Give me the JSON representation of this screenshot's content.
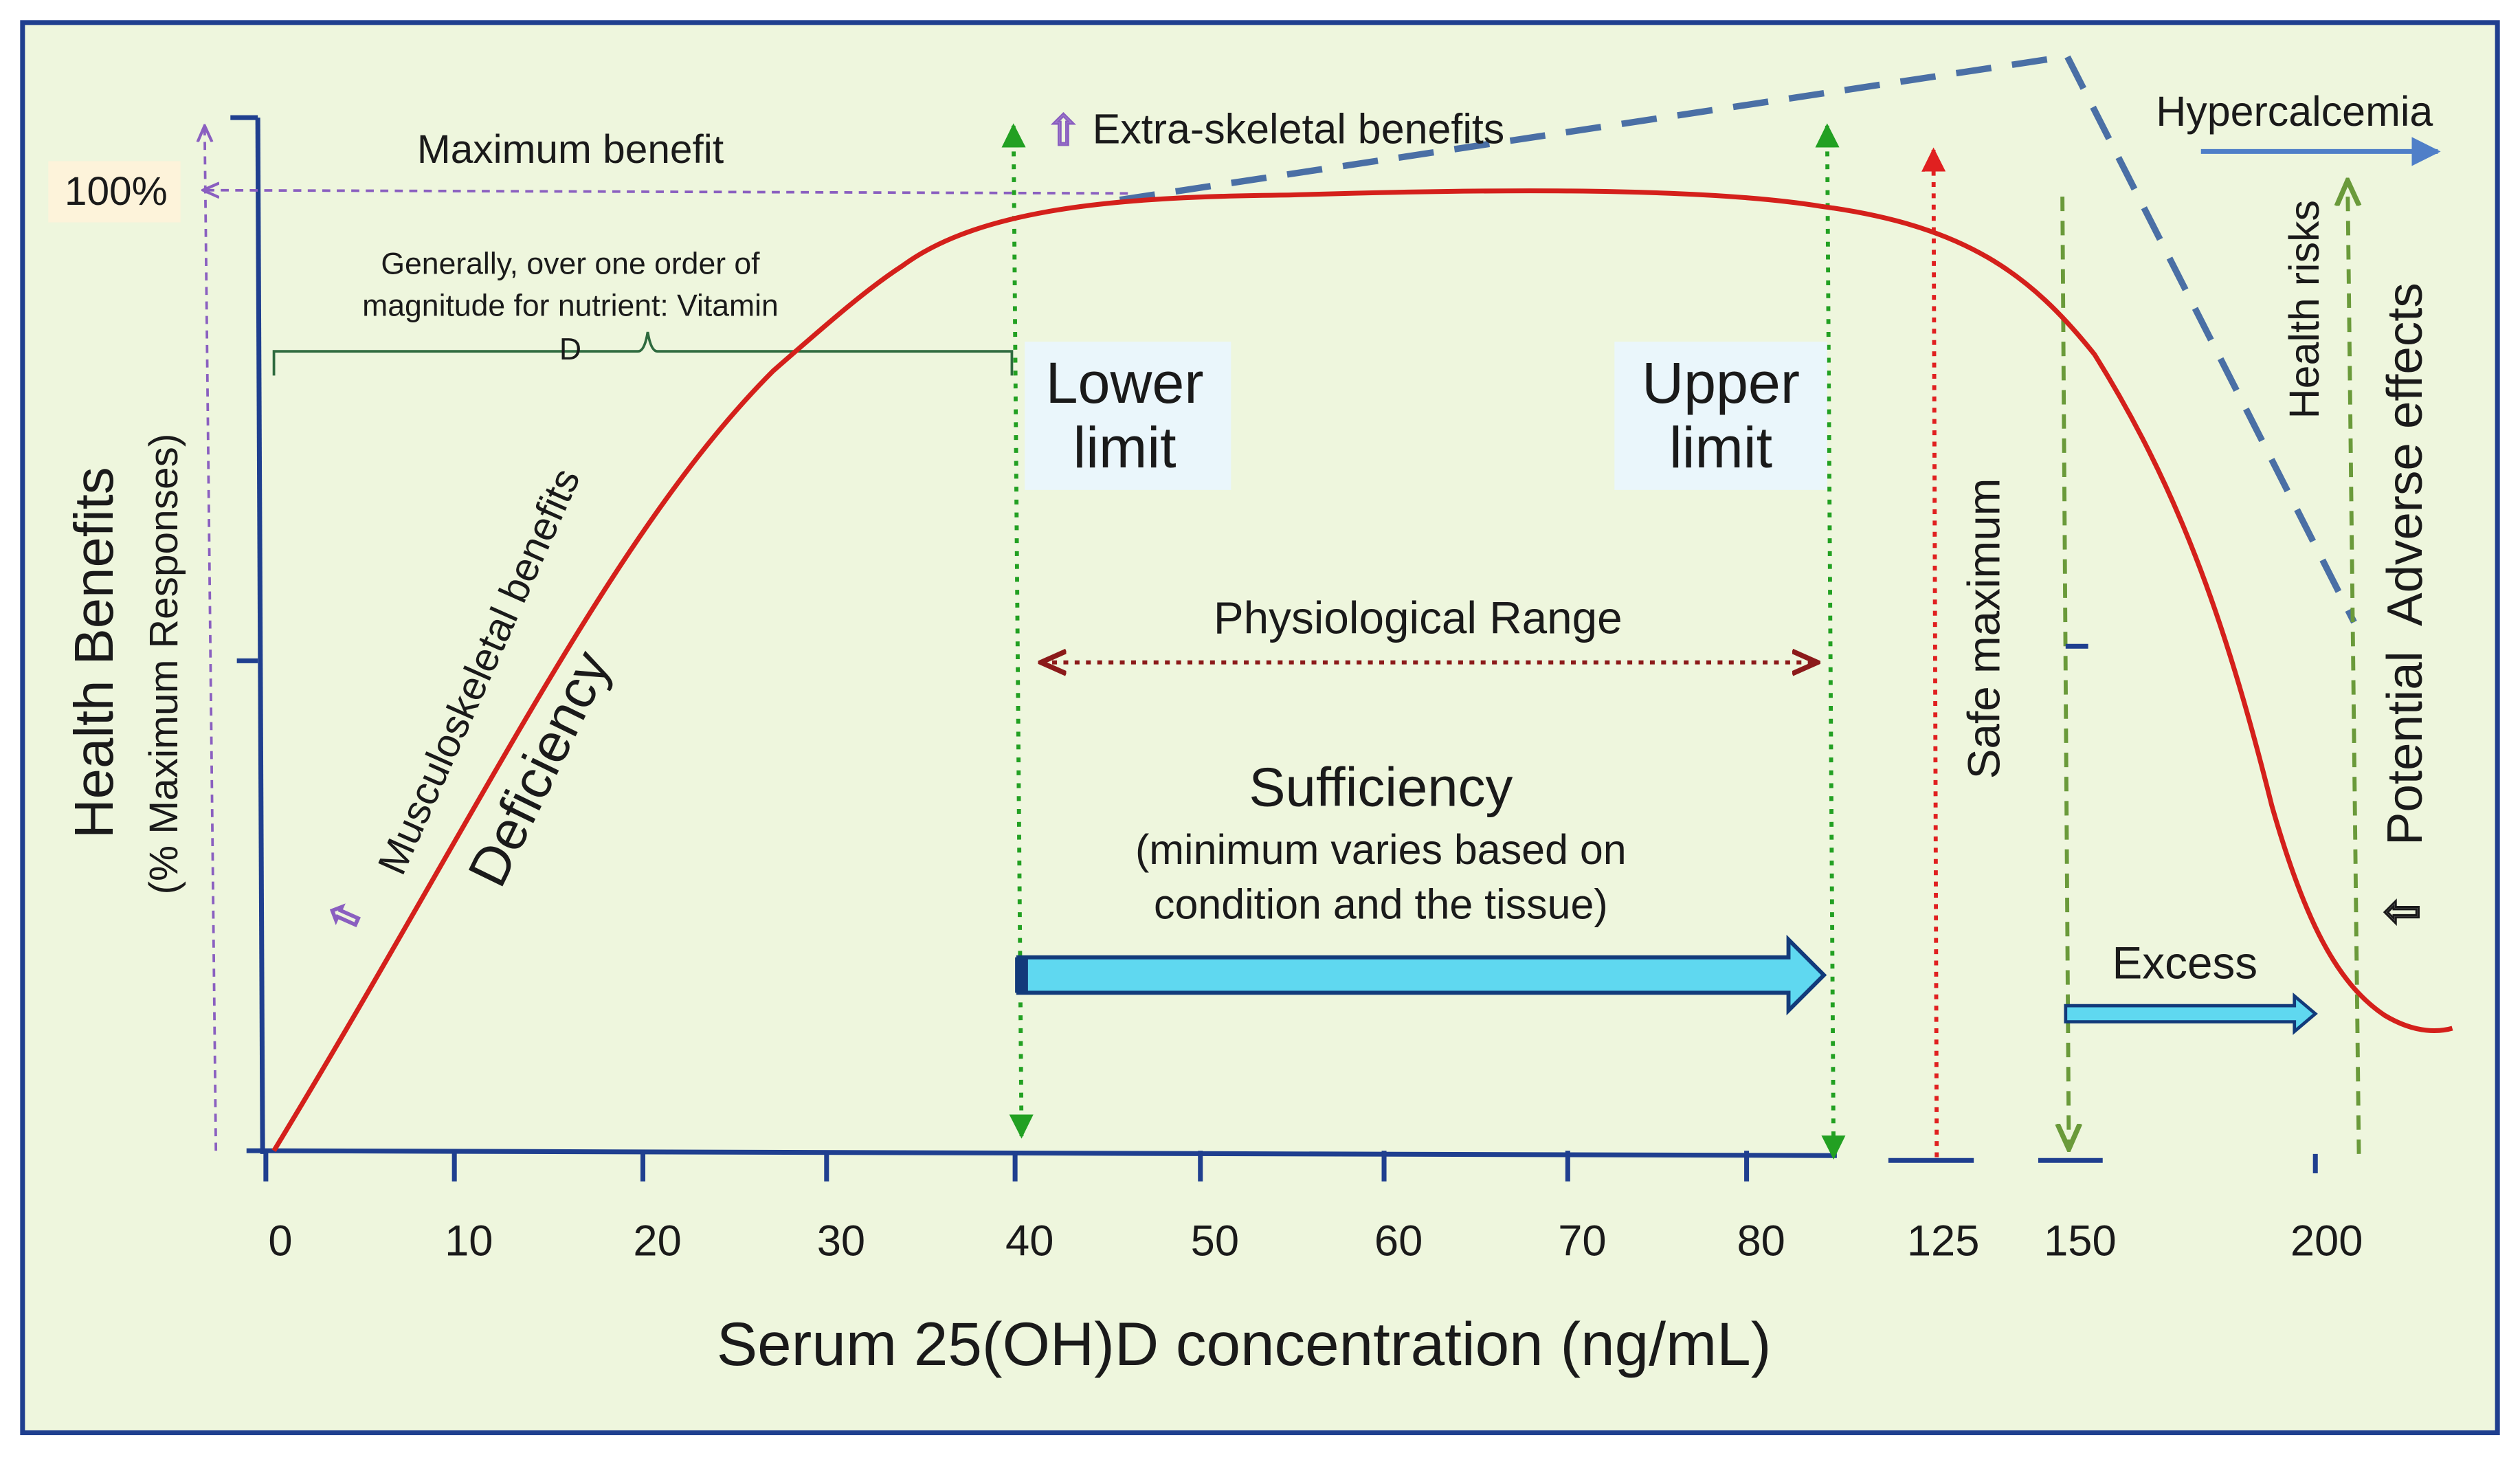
{
  "figure": {
    "y_axis": {
      "title": "Health Benefits",
      "subtitle": "(% Maximum Responses)",
      "tick_100": "100%"
    },
    "x_axis": {
      "title": "Serum 25(OH)D concentration (ng/mL)",
      "ticks": [
        "0",
        "10",
        "20",
        "30",
        "40",
        "50",
        "60",
        "70",
        "80",
        "125",
        "150",
        "200"
      ]
    },
    "labels": {
      "maximum_benefit": "Maximum benefit",
      "order_of_magnitude": [
        "Generally, over one order of",
        "magnitude for nutrient: Vitamin",
        "D"
      ],
      "extra_skeletal": "Extra-skeletal benefits",
      "hypercalcemia": "Hypercalcemia",
      "lower_limit": [
        "Lower",
        "limit"
      ],
      "upper_limit": [
        "Upper",
        "limit"
      ],
      "physiological_range": "Physiological Range",
      "sufficiency": "Sufficiency",
      "sufficiency_note": [
        "(minimum varies based on",
        "condition and the tissue)"
      ],
      "musculoskeletal": "Musculoskeletal benefits",
      "deficiency": "Deficiency",
      "safe_maximum": "Safe maximum",
      "health_risks": "Health risks",
      "adverse_effects": "Potential  Adverse effects",
      "excess": "Excess",
      "up_arrow_glyph": "⇧"
    }
  },
  "colors": {
    "background": "#eef6dd",
    "frame": "#1f3f8f",
    "curve": "#d4201b",
    "dashed_line": "#4a6fa5",
    "green_guides": "#22a022",
    "red_guide": "#e02020",
    "olive_guides": "#6a9a3a",
    "purple_guides": "#8a5fc0",
    "range_arrow": "#8b1a1a",
    "fat_arrow_fill": "#5fd8f0",
    "fat_arrow_stroke": "#123a7a",
    "limit_box": "#eaf6fb",
    "hyper_arrow": "#4f7fc8",
    "hundred_box": "#fdf3da"
  }
}
